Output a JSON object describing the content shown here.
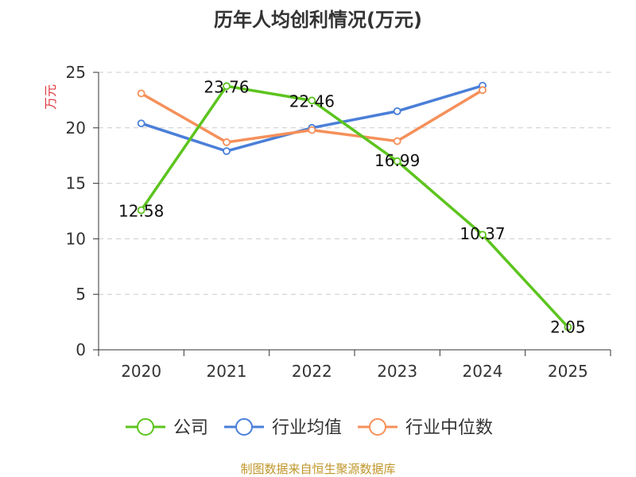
{
  "chart_data": {
    "type": "line",
    "title": "历年人均创利情况(万元)",
    "ylabel": "万元",
    "xlabel": "",
    "categories": [
      "2020",
      "2021",
      "2022",
      "2023",
      "2024",
      "2025"
    ],
    "ylim": [
      0,
      25
    ],
    "yticks": [
      0,
      5,
      10,
      15,
      20,
      25
    ],
    "grid": true,
    "legend_position": "bottom",
    "series": [
      {
        "name": "公司",
        "color": "#5cc41e",
        "values": [
          12.58,
          23.76,
          22.46,
          16.99,
          10.37,
          2.05
        ],
        "labels": [
          "12.58",
          "23.76",
          "22.46",
          "16.99",
          "10.37",
          "2.05"
        ]
      },
      {
        "name": "行业均值",
        "color": "#4a7fd8",
        "values": [
          20.4,
          17.9,
          20.0,
          21.5,
          23.8,
          null
        ]
      },
      {
        "name": "行业中位数",
        "color": "#f5905a",
        "values": [
          23.1,
          18.7,
          19.8,
          18.8,
          23.4,
          null
        ]
      }
    ]
  },
  "source": "制图数据来自恒生聚源数据库"
}
